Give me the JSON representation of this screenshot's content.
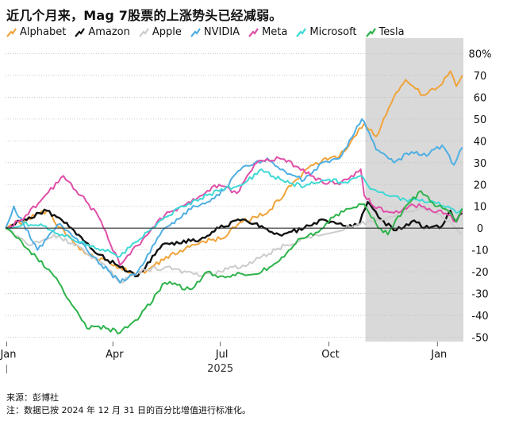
{
  "title": "近几个月来，Mag 7股票的上涨势头已经减弱。",
  "source": "来源：彭博社",
  "note": "注：数据已按 2024 年 12 月 31 日的百分比增值进行标准化。",
  "chart_data": {
    "type": "line",
    "title": "近几个月来，Mag 7股票的上涨势头已经减弱。",
    "ylim": [
      -52,
      82
    ],
    "y_ticks": [
      80,
      70,
      60,
      50,
      40,
      30,
      20,
      10,
      0,
      -10,
      -20,
      -30,
      -40,
      -50
    ],
    "y_tick_labels": [
      "80%",
      "70",
      "60",
      "50",
      "40",
      "30",
      "20",
      "10",
      "0",
      "-10",
      "-20",
      "-30",
      "-40",
      "-50"
    ],
    "x_range": [
      "2024-12-31",
      "2026-01-23"
    ],
    "x_ticks": [
      {
        "date": "2025-01-01",
        "label": "Jan"
      },
      {
        "date": "2025-04-01",
        "label": "Apr"
      },
      {
        "date": "2025-07-01",
        "label": "Jul"
      },
      {
        "date": "2025-10-01",
        "label": "Oct"
      },
      {
        "date": "2026-01-01",
        "label": "Jan"
      }
    ],
    "x_year_label": "2025",
    "shaded_region": {
      "start": "2025-11-01",
      "end": "2026-01-23"
    },
    "legend_position": "top",
    "grid": "horizontal",
    "series": [
      {
        "name": "Alphabet",
        "color": "#F0A33A",
        "points": [
          [
            "2024-12-31",
            0
          ],
          [
            "2025-01-15",
            3
          ],
          [
            "2025-02-04",
            8
          ],
          [
            "2025-02-20",
            -3
          ],
          [
            "2025-03-10",
            -12
          ],
          [
            "2025-04-07",
            -18
          ],
          [
            "2025-04-22",
            -22
          ],
          [
            "2025-05-20",
            -12
          ],
          [
            "2025-06-15",
            -6
          ],
          [
            "2025-07-01",
            -5
          ],
          [
            "2025-07-20",
            3
          ],
          [
            "2025-08-10",
            7
          ],
          [
            "2025-09-03",
            22
          ],
          [
            "2025-09-20",
            30
          ],
          [
            "2025-10-10",
            33
          ],
          [
            "2025-10-20",
            40
          ],
          [
            "2025-10-31",
            48
          ],
          [
            "2025-11-10",
            42
          ],
          [
            "2025-11-25",
            60
          ],
          [
            "2025-12-05",
            68
          ],
          [
            "2025-12-20",
            61
          ],
          [
            "2026-01-05",
            66
          ],
          [
            "2026-01-12",
            72
          ],
          [
            "2026-01-17",
            65
          ],
          [
            "2026-01-22",
            70
          ]
        ]
      },
      {
        "name": "Amazon",
        "color": "#111111",
        "points": [
          [
            "2024-12-31",
            0
          ],
          [
            "2025-01-20",
            5
          ],
          [
            "2025-02-04",
            8
          ],
          [
            "2025-02-25",
            0
          ],
          [
            "2025-03-15",
            -10
          ],
          [
            "2025-04-07",
            -18
          ],
          [
            "2025-04-22",
            -22
          ],
          [
            "2025-05-15",
            -7
          ],
          [
            "2025-06-10",
            -6
          ],
          [
            "2025-06-30",
            0
          ],
          [
            "2025-07-20",
            4
          ],
          [
            "2025-08-05",
            1
          ],
          [
            "2025-08-20",
            -3
          ],
          [
            "2025-09-10",
            0
          ],
          [
            "2025-09-25",
            4
          ],
          [
            "2025-10-15",
            1
          ],
          [
            "2025-10-27",
            2
          ],
          [
            "2025-11-03",
            12
          ],
          [
            "2025-11-12",
            5
          ],
          [
            "2025-11-25",
            -1
          ],
          [
            "2025-12-10",
            3
          ],
          [
            "2025-12-25",
            0
          ],
          [
            "2026-01-05",
            1
          ],
          [
            "2026-01-12",
            8
          ],
          [
            "2026-01-17",
            3
          ],
          [
            "2026-01-22",
            7
          ]
        ]
      },
      {
        "name": "Apple",
        "color": "#CCCCCC",
        "points": [
          [
            "2024-12-31",
            0
          ],
          [
            "2025-01-20",
            -8
          ],
          [
            "2025-02-10",
            -3
          ],
          [
            "2025-02-28",
            -8
          ],
          [
            "2025-03-20",
            -15
          ],
          [
            "2025-04-08",
            -25
          ],
          [
            "2025-04-22",
            -20
          ],
          [
            "2025-05-15",
            -18
          ],
          [
            "2025-06-15",
            -22
          ],
          [
            "2025-07-01",
            -20
          ],
          [
            "2025-07-20",
            -17
          ],
          [
            "2025-08-05",
            -13
          ],
          [
            "2025-08-25",
            -8
          ],
          [
            "2025-09-20",
            -3
          ],
          [
            "2025-10-15",
            0
          ],
          [
            "2025-11-03",
            3
          ],
          [
            "2025-11-20",
            5
          ],
          [
            "2025-12-05",
            8
          ],
          [
            "2025-12-20",
            9
          ],
          [
            "2026-01-05",
            5
          ],
          [
            "2026-01-15",
            1
          ],
          [
            "2026-01-22",
            -3
          ]
        ]
      },
      {
        "name": "NVIDIA",
        "color": "#4FAEE3",
        "points": [
          [
            "2024-12-31",
            0
          ],
          [
            "2025-01-07",
            10
          ],
          [
            "2025-01-27",
            -10
          ],
          [
            "2025-02-15",
            2
          ],
          [
            "2025-03-10",
            -10
          ],
          [
            "2025-04-07",
            -25
          ],
          [
            "2025-04-22",
            -20
          ],
          [
            "2025-05-15",
            0
          ],
          [
            "2025-06-10",
            10
          ],
          [
            "2025-06-30",
            15
          ],
          [
            "2025-07-20",
            28
          ],
          [
            "2025-08-10",
            32
          ],
          [
            "2025-08-25",
            26
          ],
          [
            "2025-09-10",
            22
          ],
          [
            "2025-09-25",
            30
          ],
          [
            "2025-10-10",
            32
          ],
          [
            "2025-10-29",
            50
          ],
          [
            "2025-11-10",
            36
          ],
          [
            "2025-11-25",
            30
          ],
          [
            "2025-12-10",
            35
          ],
          [
            "2025-12-25",
            34
          ],
          [
            "2026-01-05",
            38
          ],
          [
            "2026-01-15",
            29
          ],
          [
            "2026-01-22",
            37
          ]
        ]
      },
      {
        "name": "Meta",
        "color": "#E04FA8",
        "points": [
          [
            "2024-12-31",
            0
          ],
          [
            "2025-01-15",
            4
          ],
          [
            "2025-02-01",
            14
          ],
          [
            "2025-02-18",
            24
          ],
          [
            "2025-03-05",
            15
          ],
          [
            "2025-03-20",
            5
          ],
          [
            "2025-04-07",
            -17
          ],
          [
            "2025-04-22",
            -8
          ],
          [
            "2025-05-15",
            6
          ],
          [
            "2025-06-10",
            13
          ],
          [
            "2025-06-30",
            20
          ],
          [
            "2025-07-15",
            16
          ],
          [
            "2025-08-01",
            30
          ],
          [
            "2025-08-20",
            32
          ],
          [
            "2025-09-05",
            28
          ],
          [
            "2025-09-20",
            22
          ],
          [
            "2025-10-10",
            20
          ],
          [
            "2025-10-28",
            27
          ],
          [
            "2025-10-31",
            15
          ],
          [
            "2025-11-10",
            9
          ],
          [
            "2025-11-25",
            7
          ],
          [
            "2025-12-10",
            11
          ],
          [
            "2025-12-25",
            9
          ],
          [
            "2026-01-10",
            6
          ],
          [
            "2026-01-17",
            3
          ],
          [
            "2026-01-22",
            8
          ]
        ]
      },
      {
        "name": "Microsoft",
        "color": "#3FD9D6",
        "points": [
          [
            "2024-12-31",
            0
          ],
          [
            "2025-01-15",
            2
          ],
          [
            "2025-02-01",
            1
          ],
          [
            "2025-02-25",
            -5
          ],
          [
            "2025-03-15",
            -8
          ],
          [
            "2025-04-07",
            -13
          ],
          [
            "2025-04-22",
            -6
          ],
          [
            "2025-05-15",
            5
          ],
          [
            "2025-06-10",
            13
          ],
          [
            "2025-06-30",
            17
          ],
          [
            "2025-07-20",
            20
          ],
          [
            "2025-08-05",
            27
          ],
          [
            "2025-08-25",
            21
          ],
          [
            "2025-09-10",
            19
          ],
          [
            "2025-09-25",
            22
          ],
          [
            "2025-10-15",
            21
          ],
          [
            "2025-10-28",
            24
          ],
          [
            "2025-11-05",
            18
          ],
          [
            "2025-11-20",
            15
          ],
          [
            "2025-12-05",
            13
          ],
          [
            "2025-12-25",
            12
          ],
          [
            "2026-01-10",
            10
          ],
          [
            "2026-01-17",
            7
          ],
          [
            "2026-01-22",
            9
          ]
        ]
      },
      {
        "name": "Tesla",
        "color": "#2DB34A",
        "points": [
          [
            "2024-12-31",
            0
          ],
          [
            "2025-01-07",
            -3
          ],
          [
            "2025-01-20",
            -10
          ],
          [
            "2025-02-10",
            -22
          ],
          [
            "2025-02-25",
            -35
          ],
          [
            "2025-03-10",
            -46
          ],
          [
            "2025-03-20",
            -45
          ],
          [
            "2025-04-07",
            -48
          ],
          [
            "2025-04-22",
            -42
          ],
          [
            "2025-05-15",
            -25
          ],
          [
            "2025-06-05",
            -28
          ],
          [
            "2025-06-20",
            -20
          ],
          [
            "2025-07-01",
            -22
          ],
          [
            "2025-07-20",
            -21
          ],
          [
            "2025-08-05",
            -20
          ],
          [
            "2025-08-20",
            -15
          ],
          [
            "2025-09-05",
            -5
          ],
          [
            "2025-09-20",
            -2
          ],
          [
            "2025-10-05",
            5
          ],
          [
            "2025-10-20",
            9
          ],
          [
            "2025-10-31",
            11
          ],
          [
            "2025-11-10",
            2
          ],
          [
            "2025-11-20",
            -3
          ],
          [
            "2025-12-05",
            10
          ],
          [
            "2025-12-18",
            17
          ],
          [
            "2026-01-01",
            10
          ],
          [
            "2026-01-10",
            8
          ],
          [
            "2026-01-17",
            3
          ],
          [
            "2026-01-22",
            9
          ]
        ]
      }
    ]
  }
}
